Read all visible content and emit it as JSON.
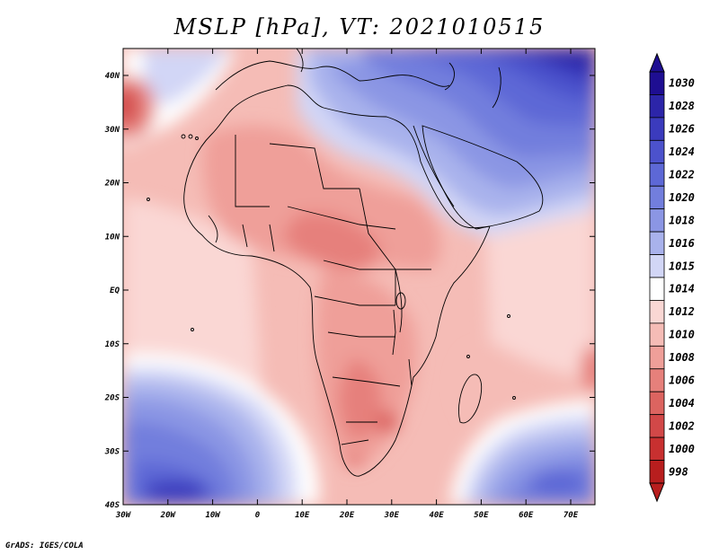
{
  "title": "MSLP [hPa], VT: 2021010515",
  "credit": "GrADS: IGES/COLA",
  "lon_labels": [
    "30W",
    "20W",
    "10W",
    "0",
    "10E",
    "20E",
    "30E",
    "40E",
    "50E",
    "60E",
    "70E"
  ],
  "lat_labels": [
    "40N",
    "30N",
    "20N",
    "10N",
    "EQ",
    "10S",
    "20S",
    "30S",
    "40S"
  ],
  "colorbar": {
    "levels": [
      "1030",
      "1028",
      "1026",
      "1024",
      "1022",
      "1020",
      "1018",
      "1016",
      "1015",
      "1014",
      "1012",
      "1010",
      "1008",
      "1006",
      "1004",
      "1002",
      "1000",
      "998"
    ],
    "colors": [
      "#1e0e92",
      "#2c25a9",
      "#3b3bbd",
      "#4c52cc",
      "#5d68d6",
      "#727edd",
      "#8b96e4",
      "#a9b2ec",
      "#d2d6f6",
      "#ffffff",
      "#fad7d4",
      "#f5bcb6",
      "#ef9f99",
      "#e6807b",
      "#dc6460",
      "#d24848",
      "#c83030",
      "#b81e1e"
    ]
  }
}
